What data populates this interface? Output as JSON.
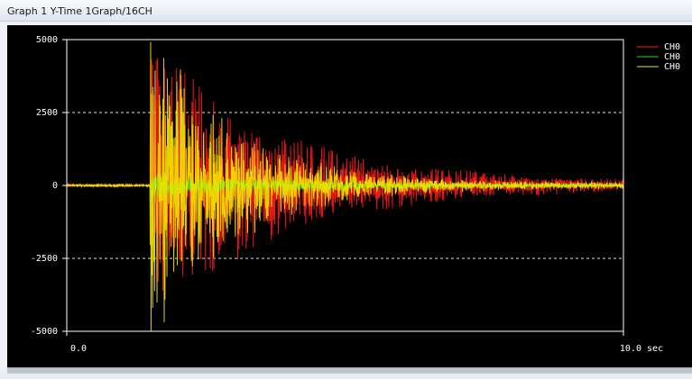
{
  "window": {
    "title": "Graph 1 Y-Time 1Graph/16CH"
  },
  "colors": {
    "background": "#000000",
    "axis": "#ffffff",
    "grid": "#ffffff",
    "series": [
      "#ff1a1a",
      "#22d622",
      "#f2e600"
    ]
  },
  "chart_data": {
    "type": "line",
    "title": "",
    "xlabel": "",
    "ylabel": "",
    "xlim": [
      0.0,
      10.0
    ],
    "ylim": [
      -5000,
      5000
    ],
    "x_ticks": [
      {
        "value": 0.0,
        "label": "0.0"
      },
      {
        "value": 10.0,
        "label": "10.0 sec"
      }
    ],
    "y_ticks": [
      {
        "value": 5000,
        "label": "5000"
      },
      {
        "value": 2500,
        "label": "2500"
      },
      {
        "value": 0,
        "label": "0"
      },
      {
        "value": -2500,
        "label": "-2500"
      },
      {
        "value": -5000,
        "label": "-5000"
      }
    ],
    "grid": {
      "horizontal": true,
      "dashed": true,
      "values": [
        2500,
        -2500
      ]
    },
    "legend_position": "top-right",
    "onset_time_sec": 1.5,
    "series": [
      {
        "name": "CH0",
        "color": "#ff1a1a",
        "peak_amplitude": 4200,
        "decay_tau_sec": 2.2,
        "noise_floor": 120
      },
      {
        "name": "CH0",
        "color": "#22d622",
        "peak_amplitude": 350,
        "decay_tau_sec": 2.5,
        "noise_floor": 40
      },
      {
        "name": "CH0",
        "color": "#f2e600",
        "peak_amplitude": 5000,
        "decay_tau_sec": 1.4,
        "noise_floor": 90
      }
    ]
  }
}
